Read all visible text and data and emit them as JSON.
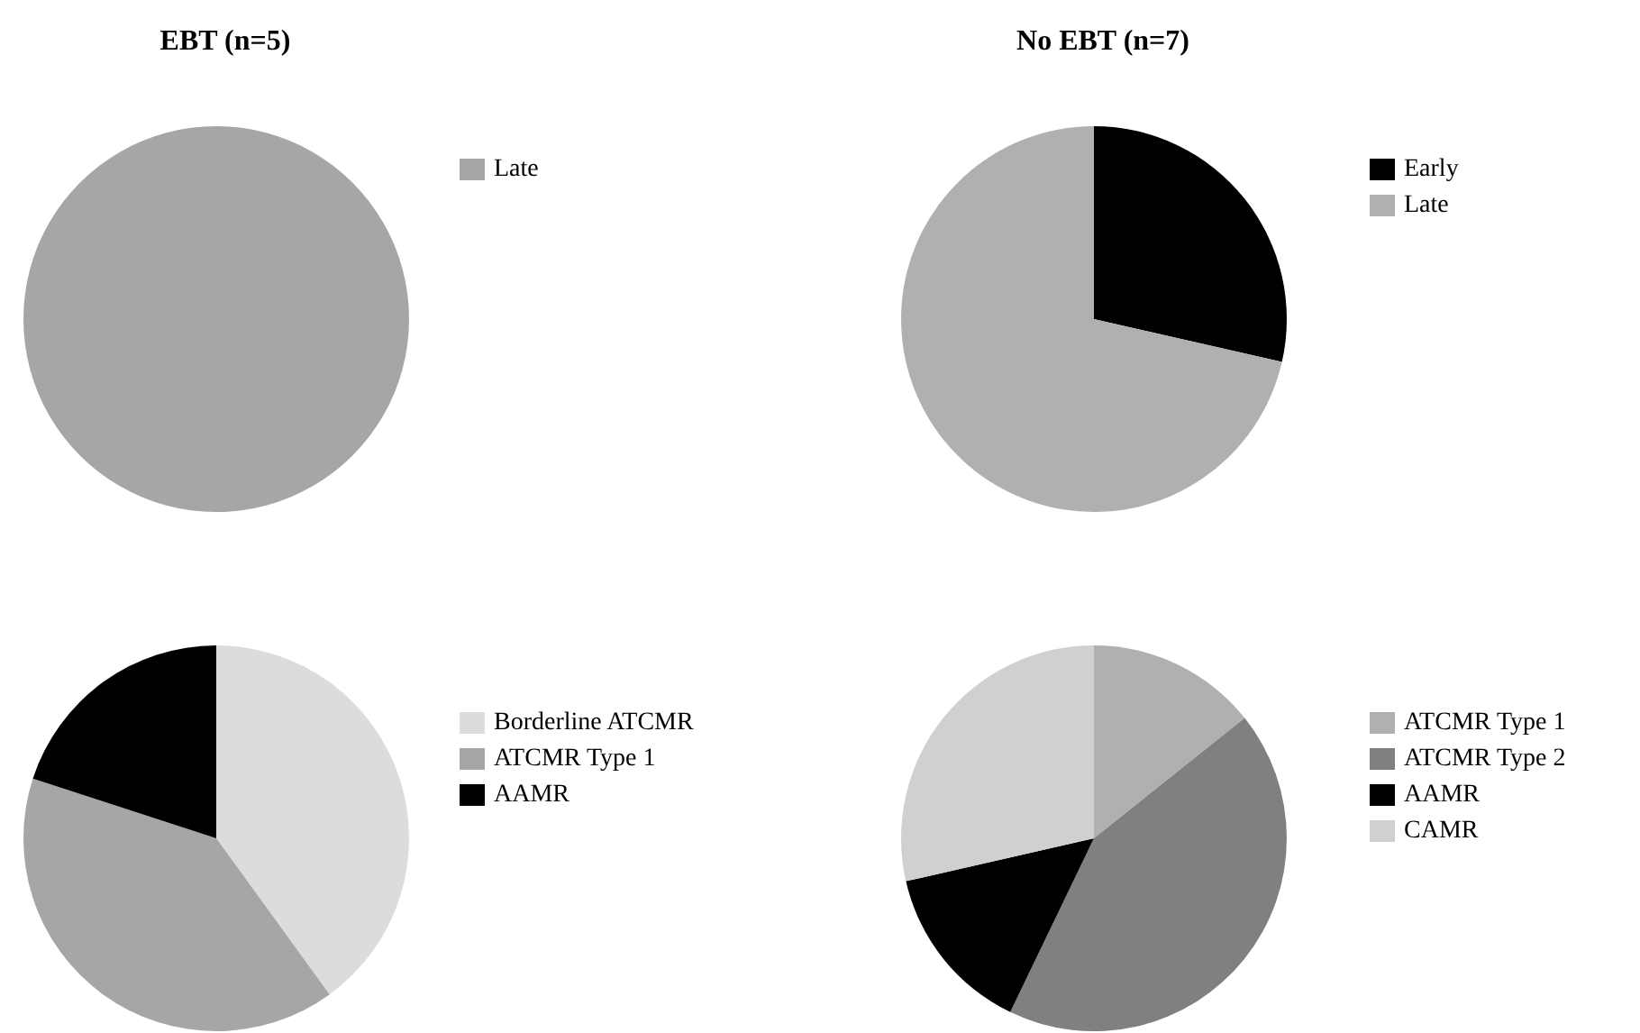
{
  "chart_data": [
    {
      "type": "pie",
      "title": "EBT (n=5)",
      "categories": [
        "Late"
      ],
      "values": [
        100
      ],
      "colors": [
        "#a6a6a6"
      ],
      "legend": "right"
    },
    {
      "type": "pie",
      "title": "No EBT (n=7)",
      "categories": [
        "Early",
        "Late"
      ],
      "values": [
        28.57,
        71.43
      ],
      "colors": [
        "#000000",
        "#b0b0b0"
      ],
      "legend": "right"
    },
    {
      "type": "pie",
      "categories": [
        "Borderline ATCMR",
        "ATCMR Type 1",
        "AAMR"
      ],
      "values": [
        40,
        40,
        20
      ],
      "colors": [
        "#dcdcdc",
        "#a6a6a6",
        "#000000"
      ],
      "legend": "right"
    },
    {
      "type": "pie",
      "categories": [
        "ATCMR Type 1",
        "ATCMR Type 2",
        "AAMR",
        "CAMR"
      ],
      "values": [
        14.29,
        42.86,
        14.29,
        28.57
      ],
      "colors": [
        "#b0b0b0",
        "#808080",
        "#000000",
        "#d0d0d0"
      ],
      "legend": "right"
    }
  ]
}
